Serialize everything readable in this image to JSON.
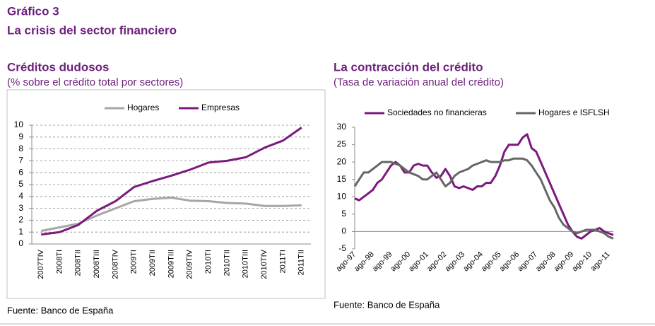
{
  "header": {
    "title": "Gráfico 3",
    "subtitle": "La crisis del sector financiero"
  },
  "chart_data": [
    {
      "type": "line",
      "title": "Créditos dudosos",
      "subtitle": "(% sobre el crédito total por sectores)",
      "source": "Fuente: Banco de España",
      "categories": [
        "2007TIV",
        "2008TI",
        "2008TII",
        "2008TIII",
        "2008TIV",
        "2009TI",
        "2009TII",
        "2009TIII",
        "2009TIV",
        "2010TI",
        "2010TII",
        "2010TIII",
        "2010TIV",
        "2011TI",
        "2011TII"
      ],
      "series": [
        {
          "name": "Hogares",
          "color": "#a6a6a6",
          "values": [
            1.1,
            1.4,
            1.7,
            2.4,
            3.0,
            3.6,
            3.8,
            3.9,
            3.65,
            3.6,
            3.45,
            3.4,
            3.2,
            3.2,
            3.25
          ]
        },
        {
          "name": "Empresas",
          "color": "#7b1a7e",
          "values": [
            0.8,
            1.0,
            1.6,
            2.8,
            3.6,
            4.8,
            5.3,
            5.75,
            6.25,
            6.85,
            7.0,
            7.3,
            8.1,
            8.7,
            9.8
          ]
        }
      ],
      "ylim": [
        0,
        10
      ],
      "yticks": [
        0,
        1,
        2,
        3,
        4,
        5,
        6,
        7,
        8,
        9,
        10
      ],
      "grid": true
    },
    {
      "type": "line",
      "title": "La contracción del crédito",
      "subtitle": "(Tasa de variación anual del crédito)",
      "source": "Fuente: Banco de España",
      "categories": [
        "ago-97",
        null,
        null,
        null,
        "ago-98",
        null,
        null,
        null,
        "ago-99",
        null,
        null,
        null,
        "ago-00",
        null,
        null,
        null,
        "ago-01",
        null,
        null,
        null,
        "ago-02",
        null,
        null,
        null,
        "ago-03",
        null,
        null,
        null,
        "ago-04",
        null,
        null,
        null,
        "ago-05",
        null,
        null,
        null,
        "ago-06",
        null,
        null,
        null,
        "ago-07",
        null,
        null,
        null,
        "ago-08",
        null,
        null,
        null,
        "ago-09",
        null,
        null,
        null,
        "ago-10",
        null,
        null,
        null,
        "ago-11",
        null
      ],
      "series": [
        {
          "name": "Sociedades no financieras",
          "color": "#7b1a7e",
          "values": [
            9.5,
            9,
            10,
            11,
            12,
            14,
            15,
            17,
            19,
            20,
            19,
            17,
            17,
            19,
            19.5,
            19,
            19,
            17,
            15.5,
            16,
            18,
            16,
            13,
            12.5,
            13,
            12.5,
            12,
            13,
            13,
            14,
            14,
            16,
            19,
            23,
            25,
            25,
            25,
            27,
            28,
            24,
            23,
            20,
            17,
            14,
            11,
            8,
            5,
            2,
            0,
            -1.5,
            -2,
            -1,
            0,
            0.5,
            1,
            0,
            -0.5,
            -1
          ]
        },
        {
          "name": "Hogares e ISFLSH",
          "color": "#666666",
          "values": [
            13,
            15,
            17,
            17,
            18,
            19,
            20,
            20,
            20,
            19.5,
            19,
            18,
            17,
            16.5,
            16,
            15,
            15,
            16,
            17,
            15,
            13,
            14,
            16,
            17,
            17.5,
            18,
            19,
            19.5,
            20,
            20.5,
            20,
            20,
            20,
            20.5,
            20.5,
            21,
            21,
            21,
            20.5,
            19,
            17,
            15,
            12,
            9,
            7,
            4,
            2,
            1,
            0,
            -0.5,
            0,
            0.5,
            0.5,
            0.5,
            0,
            -0.5,
            -1.5,
            -2
          ]
        }
      ],
      "ylim": [
        -5,
        30
      ],
      "yticks": [
        -5,
        0,
        5,
        10,
        15,
        20,
        25,
        30
      ],
      "grid": false
    }
  ]
}
